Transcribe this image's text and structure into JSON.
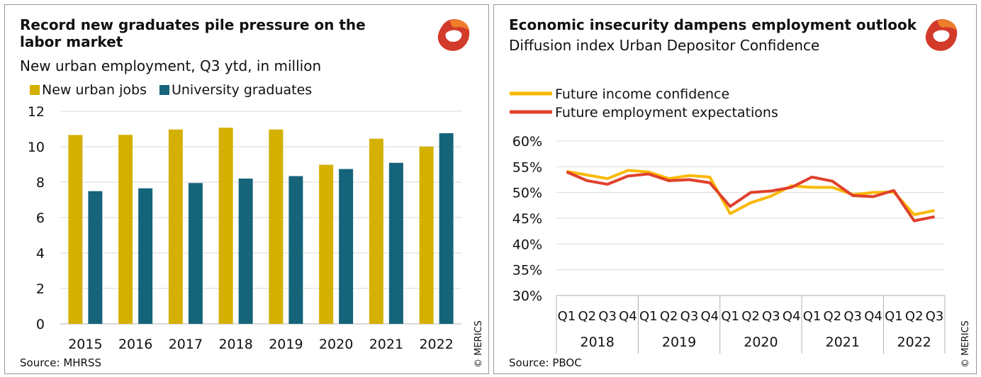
{
  "left": {
    "title_line1": "Record new graduates pile pressure on the",
    "title_line2": "labor market",
    "subtitle": "New urban employment, Q3 ytd, in million",
    "source": "Source: MHRSS",
    "copyright": "© MERICS"
  },
  "right": {
    "title": "Economic insecurity dampens employment outlook",
    "subtitle": "Diffusion index Urban Depositor Confidence",
    "source": "Source: PBOC",
    "copyright": "© MERICS"
  },
  "colors": {
    "new_urban_jobs": "#d4b000",
    "university_graduates": "#15647a",
    "future_income": "#f9b800",
    "future_employment": "#e0412c",
    "grid": "#d9d9d9",
    "logo_red": "#d23a2a",
    "logo_orange": "#ee7d2a"
  },
  "chart_data": [
    {
      "type": "bar",
      "categories": [
        "2015",
        "2016",
        "2017",
        "2018",
        "2019",
        "2020",
        "2021",
        "2022"
      ],
      "series": [
        {
          "name": "New urban jobs",
          "values": [
            10.66,
            10.67,
            10.97,
            11.07,
            10.97,
            8.98,
            10.45,
            10.01
          ]
        },
        {
          "name": "University graduates",
          "values": [
            7.49,
            7.65,
            7.95,
            8.2,
            8.34,
            8.74,
            9.09,
            10.76
          ]
        }
      ],
      "ylim": [
        0,
        12
      ],
      "yticks": [
        "0",
        "2",
        "4",
        "6",
        "8",
        "10",
        "12"
      ],
      "grid": true,
      "legend": "top-left"
    },
    {
      "type": "line",
      "x": [
        "Q1",
        "Q2",
        "Q3",
        "Q4",
        "Q1",
        "Q2",
        "Q3",
        "Q4",
        "Q1",
        "Q2",
        "Q3",
        "Q4",
        "Q1",
        "Q2",
        "Q3",
        "Q4",
        "Q1",
        "Q2",
        "Q3"
      ],
      "years": [
        "2018",
        "2019",
        "2020",
        "2021",
        "2022"
      ],
      "series": [
        {
          "name": "Future income confidence",
          "values": [
            54.1,
            53.4,
            52.7,
            54.3,
            54.0,
            52.7,
            53.3,
            53.0,
            45.9,
            48.0,
            49.3,
            51.3,
            51.0,
            51.0,
            49.6,
            50.0,
            50.1,
            45.7,
            46.5
          ]
        },
        {
          "name": "Future employment expectations",
          "values": [
            54.0,
            52.3,
            51.6,
            53.2,
            53.6,
            52.3,
            52.5,
            51.9,
            47.3,
            50.0,
            50.3,
            51.0,
            53.0,
            52.2,
            49.4,
            49.2,
            50.4,
            44.5,
            45.3
          ]
        }
      ],
      "ylim": [
        30,
        60
      ],
      "yticks": [
        "30%",
        "35%",
        "40%",
        "45%",
        "50%",
        "55%",
        "60%"
      ],
      "grid": true,
      "legend": "top-left"
    }
  ]
}
